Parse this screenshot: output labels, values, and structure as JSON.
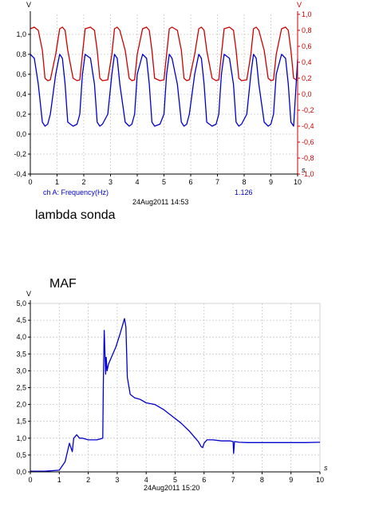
{
  "chart_data": [
    {
      "type": "line",
      "caption": "lambda sonda",
      "x_unit": "s",
      "xlim": [
        0,
        10
      ],
      "x_ticks": [
        "0",
        "1",
        "2",
        "3",
        "4",
        "5",
        "6",
        "7",
        "8",
        "9",
        "10"
      ],
      "left_axis": {
        "unit": "V",
        "ylim": [
          -0.4,
          1.2
        ],
        "ticks": [
          {
            "v": 1.0,
            "label": "1,0"
          },
          {
            "v": 0.8,
            "label": "0,8"
          },
          {
            "v": 0.6,
            "label": "0,6"
          },
          {
            "v": 0.4,
            "label": "0,4"
          },
          {
            "v": 0.2,
            "label": "0,2"
          },
          {
            "v": 0.0,
            "label": "0,0"
          },
          {
            "v": -0.2,
            "label": "-0,2"
          },
          {
            "v": -0.4,
            "label": "-0,4"
          }
        ],
        "color": "#000000"
      },
      "right_axis": {
        "unit": "V",
        "ylim": [
          -1.0,
          1.0
        ],
        "ticks": [
          {
            "v": 1.0,
            "label": "1,0"
          },
          {
            "v": 0.8,
            "label": "0,8"
          },
          {
            "v": 0.6,
            "label": "0,6"
          },
          {
            "v": 0.4,
            "label": "0,4"
          },
          {
            "v": 0.2,
            "label": "0,2"
          },
          {
            "v": 0.0,
            "label": "0,0"
          },
          {
            "v": -0.2,
            "label": "-0,2"
          },
          {
            "v": -0.4,
            "label": "-0,4"
          },
          {
            "v": -0.6,
            "label": "-0,6"
          },
          {
            "v": -0.8,
            "label": "-0,8"
          },
          {
            "v": -1.0,
            "label": "-1,0"
          }
        ],
        "color": "#cc0000"
      },
      "footer_left": "ch A: Frequency(Hz)",
      "footer_center": "24Aug2011  14:53",
      "footer_right": "1.126",
      "series": [
        {
          "color": "#cc0000",
          "axis": "right",
          "note_shape": "square-wave",
          "x": [
            0,
            0.15,
            0.3,
            0.45,
            0.55,
            0.65,
            0.75,
            0.95,
            1.1,
            1.2,
            1.3,
            1.4,
            1.6,
            1.75,
            1.85,
            1.95,
            2.05,
            2.25,
            2.4,
            2.5,
            2.6,
            2.7,
            2.9,
            3.05,
            3.15,
            3.25,
            3.35,
            3.55,
            3.7,
            3.8,
            3.9,
            4.0,
            4.2,
            4.35,
            4.45,
            4.55,
            4.65,
            4.85,
            5.0,
            5.1,
            5.2,
            5.3,
            5.5,
            5.65,
            5.75,
            5.85,
            5.95,
            6.15,
            6.3,
            6.4,
            6.5,
            6.6,
            6.8,
            6.95,
            7.05,
            7.15,
            7.25,
            7.45,
            7.6,
            7.7,
            7.8,
            7.9,
            8.1,
            8.25,
            8.35,
            8.45,
            8.55,
            8.75,
            8.9,
            9.0,
            9.1,
            9.2,
            9.4,
            9.55,
            9.65,
            9.75,
            9.85,
            10.0
          ],
          "y": [
            0.82,
            0.84,
            0.8,
            0.55,
            0.2,
            0.17,
            0.18,
            0.5,
            0.82,
            0.84,
            0.8,
            0.55,
            0.2,
            0.17,
            0.18,
            0.5,
            0.82,
            0.84,
            0.8,
            0.55,
            0.2,
            0.17,
            0.18,
            0.5,
            0.82,
            0.84,
            0.8,
            0.55,
            0.2,
            0.17,
            0.18,
            0.5,
            0.82,
            0.84,
            0.8,
            0.55,
            0.2,
            0.17,
            0.18,
            0.5,
            0.82,
            0.84,
            0.8,
            0.55,
            0.2,
            0.17,
            0.18,
            0.5,
            0.82,
            0.84,
            0.8,
            0.55,
            0.2,
            0.17,
            0.18,
            0.5,
            0.82,
            0.84,
            0.8,
            0.55,
            0.2,
            0.17,
            0.18,
            0.5,
            0.82,
            0.84,
            0.8,
            0.55,
            0.2,
            0.17,
            0.18,
            0.5,
            0.82,
            0.84,
            0.8,
            0.55,
            0.2,
            0.17
          ]
        },
        {
          "color": "#0000cc",
          "axis": "left",
          "note_shape": "square-wave-inverse",
          "x": [
            0,
            0.15,
            0.3,
            0.45,
            0.55,
            0.65,
            0.75,
            0.95,
            1.1,
            1.2,
            1.3,
            1.4,
            1.6,
            1.75,
            1.85,
            1.95,
            2.05,
            2.25,
            2.4,
            2.5,
            2.6,
            2.7,
            2.9,
            3.05,
            3.15,
            3.25,
            3.35,
            3.55,
            3.7,
            3.8,
            3.9,
            4.0,
            4.2,
            4.35,
            4.45,
            4.55,
            4.65,
            4.85,
            5.0,
            5.1,
            5.2,
            5.3,
            5.5,
            5.65,
            5.75,
            5.85,
            5.95,
            6.15,
            6.3,
            6.4,
            6.5,
            6.6,
            6.8,
            6.95,
            7.05,
            7.15,
            7.25,
            7.45,
            7.6,
            7.7,
            7.8,
            7.9,
            8.1,
            8.25,
            8.35,
            8.45,
            8.55,
            8.75,
            8.9,
            9.0,
            9.1,
            9.2,
            9.4,
            9.55,
            9.65,
            9.75,
            9.85,
            10.0
          ],
          "y": [
            0.8,
            0.76,
            0.5,
            0.12,
            0.08,
            0.1,
            0.2,
            0.6,
            0.8,
            0.76,
            0.5,
            0.12,
            0.08,
            0.1,
            0.2,
            0.6,
            0.8,
            0.76,
            0.5,
            0.12,
            0.08,
            0.1,
            0.2,
            0.6,
            0.8,
            0.76,
            0.5,
            0.12,
            0.08,
            0.1,
            0.2,
            0.6,
            0.8,
            0.76,
            0.5,
            0.12,
            0.08,
            0.1,
            0.2,
            0.6,
            0.8,
            0.76,
            0.5,
            0.12,
            0.08,
            0.1,
            0.2,
            0.6,
            0.8,
            0.76,
            0.5,
            0.12,
            0.08,
            0.1,
            0.2,
            0.6,
            0.8,
            0.76,
            0.5,
            0.12,
            0.08,
            0.1,
            0.2,
            0.6,
            0.8,
            0.76,
            0.5,
            0.12,
            0.08,
            0.1,
            0.2,
            0.6,
            0.8,
            0.76,
            0.5,
            0.12,
            0.08,
            0.75
          ]
        }
      ]
    },
    {
      "type": "line",
      "caption": "MAF",
      "x_unit": "s",
      "xlim": [
        0,
        10
      ],
      "x_ticks": [
        "0",
        "1",
        "2",
        "3",
        "4",
        "5",
        "6",
        "7",
        "8",
        "9",
        "10"
      ],
      "left_axis": {
        "unit": "V",
        "ylim": [
          0,
          5.0
        ],
        "ticks": [
          {
            "v": 5.0,
            "label": "5,0"
          },
          {
            "v": 4.5,
            "label": "4,5"
          },
          {
            "v": 4.0,
            "label": "4,0"
          },
          {
            "v": 3.5,
            "label": "3,5"
          },
          {
            "v": 3.0,
            "label": "3,0"
          },
          {
            "v": 2.5,
            "label": "2,5"
          },
          {
            "v": 2.0,
            "label": "2,0"
          },
          {
            "v": 1.5,
            "label": "1,5"
          },
          {
            "v": 1.0,
            "label": "1,0"
          },
          {
            "v": 0.5,
            "label": "0,5"
          },
          {
            "v": 0.0,
            "label": "0,0"
          }
        ],
        "color": "#000000"
      },
      "footer_center": "24Aug2011  15:20",
      "series": [
        {
          "color": "#0000cc",
          "axis": "left",
          "x": [
            0,
            0.5,
            1.0,
            1.2,
            1.35,
            1.45,
            1.5,
            1.6,
            1.7,
            1.8,
            2.0,
            2.3,
            2.5,
            2.52,
            2.55,
            2.6,
            2.62,
            2.65,
            2.7,
            2.8,
            2.95,
            3.1,
            3.2,
            3.25,
            3.3,
            3.35,
            3.45,
            3.6,
            3.8,
            4.0,
            4.3,
            4.6,
            4.9,
            5.2,
            5.5,
            5.7,
            5.8,
            5.9,
            5.95,
            6.0,
            6.1,
            6.3,
            6.6,
            6.9,
            7.0,
            7.02,
            7.05,
            7.2,
            7.5,
            8.0,
            8.5,
            9.0,
            9.5,
            10.0
          ],
          "y": [
            0.02,
            0.02,
            0.05,
            0.3,
            0.85,
            0.6,
            1.0,
            1.1,
            1.0,
            1.0,
            0.95,
            0.95,
            1.0,
            2.6,
            4.2,
            2.9,
            3.4,
            3.0,
            3.2,
            3.4,
            3.7,
            4.1,
            4.4,
            4.55,
            4.3,
            2.8,
            2.3,
            2.2,
            2.15,
            2.05,
            2.0,
            1.85,
            1.65,
            1.45,
            1.2,
            1.0,
            0.9,
            0.75,
            0.72,
            0.85,
            0.95,
            0.95,
            0.92,
            0.92,
            0.9,
            0.55,
            0.9,
            0.88,
            0.87,
            0.87,
            0.87,
            0.87,
            0.87,
            0.88
          ]
        }
      ]
    }
  ]
}
